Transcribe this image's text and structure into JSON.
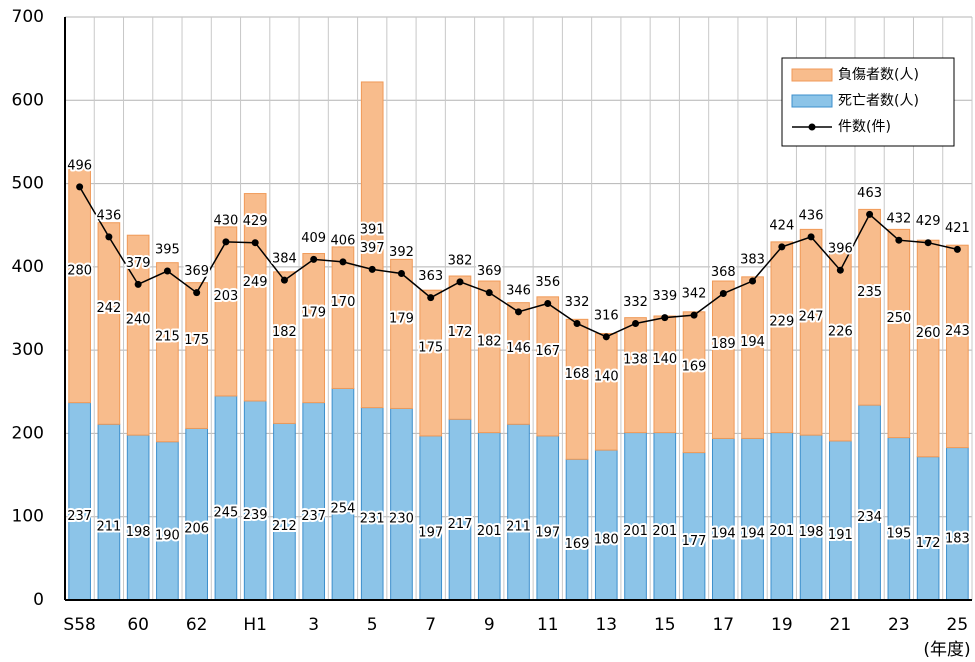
{
  "chart_data": {
    "type": "bar",
    "categories": [
      "S58",
      null,
      "60",
      null,
      "62",
      null,
      "H1",
      null,
      "3",
      null,
      "5",
      null,
      "7",
      null,
      "9",
      null,
      "11",
      null,
      "13",
      null,
      "15",
      null,
      "17",
      null,
      "19",
      null,
      "21",
      null,
      "23",
      null,
      "25"
    ],
    "x_unit_label": "(年度)",
    "series": [
      {
        "name": "死亡者数(人)",
        "type": "bar",
        "stack": true,
        "color": "#8cc4e8",
        "edge": "#3d8fcc",
        "values": [
          237,
          211,
          198,
          190,
          206,
          245,
          239,
          212,
          237,
          254,
          231,
          230,
          197,
          217,
          201,
          211,
          197,
          169,
          180,
          201,
          201,
          177,
          194,
          194,
          201,
          198,
          191,
          234,
          195,
          172,
          183
        ]
      },
      {
        "name": "負傷者数(人)",
        "type": "bar",
        "stack": true,
        "color": "#f8bc8c",
        "edge": "#f09a58",
        "values": [
          280,
          242,
          240,
          215,
          175,
          203,
          249,
          182,
          179,
          170,
          391,
          179,
          175,
          172,
          182,
          146,
          167,
          168,
          140,
          138,
          140,
          169,
          189,
          194,
          229,
          247,
          226,
          235,
          250,
          260,
          243
        ]
      },
      {
        "name": "件数(件)",
        "type": "line",
        "color": "#000000",
        "values": [
          496,
          436,
          379,
          395,
          369,
          430,
          429,
          384,
          409,
          406,
          397,
          392,
          363,
          382,
          369,
          346,
          356,
          332,
          316,
          332,
          339,
          342,
          368,
          383,
          424,
          436,
          396,
          463,
          432,
          429,
          421
        ]
      }
    ],
    "ylim": [
      0,
      700
    ],
    "yticks": [
      0,
      100,
      200,
      300,
      400,
      500,
      600,
      700
    ],
    "grid": true,
    "legend": "top-right"
  }
}
